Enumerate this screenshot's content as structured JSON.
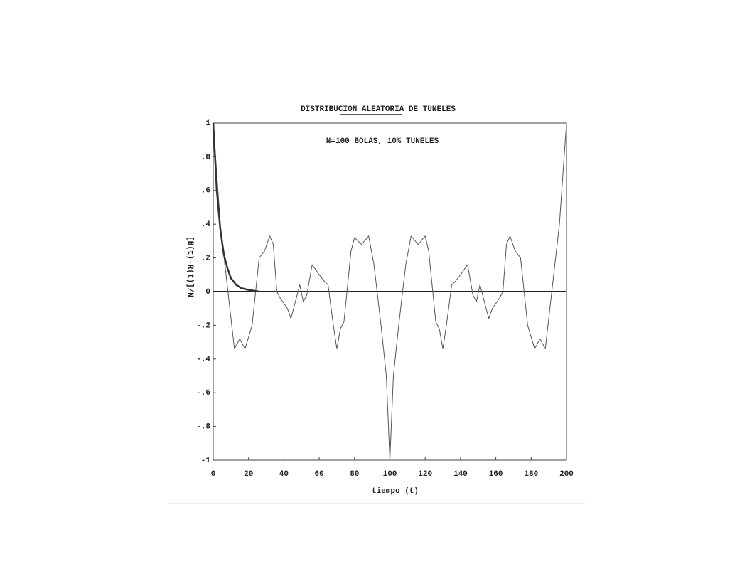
{
  "chart_data": {
    "type": "line",
    "title": "DISTRIBUCION ALEATORIA DE TUNELES",
    "annotation": "N=100 BOLAS, 10% TUNELES",
    "x_label": "tiempo (t)",
    "y_label": "[B(t)-R(t)]/N",
    "xlim": [
      0,
      200
    ],
    "ylim": [
      -1,
      1
    ],
    "xticks": [
      0,
      20,
      40,
      60,
      80,
      100,
      120,
      140,
      160,
      180,
      200
    ],
    "yticks": [
      1,
      {
        "value": 0.8,
        "label": ".8"
      },
      {
        "value": 0.6,
        "label": ".6"
      },
      {
        "value": 0.4,
        "label": ".4"
      },
      {
        "value": 0.2,
        "label": ".2"
      },
      0,
      {
        "value": -0.2,
        "label": "-.2"
      },
      {
        "value": -0.4,
        "label": "-.4"
      },
      {
        "value": -0.6,
        "label": "-.6"
      },
      {
        "value": -0.8,
        "label": "-.8"
      },
      -1
    ],
    "grid": false,
    "series": [
      {
        "color": "#555555",
        "width": 1,
        "x": [
          0,
          4,
          12,
          15,
          18,
          22,
          26,
          29,
          32,
          34,
          36,
          38,
          42,
          44,
          47,
          49,
          51,
          53,
          56,
          60,
          63,
          65,
          68,
          70,
          72,
          74,
          78,
          80,
          84,
          88,
          91,
          95,
          98,
          100,
          102,
          105,
          109,
          112,
          116,
          120,
          122,
          126,
          128,
          130,
          132,
          135,
          137,
          140,
          144,
          147,
          149,
          151,
          153,
          156,
          158,
          162,
          164,
          166,
          168,
          171,
          174,
          178,
          182,
          185,
          188,
          196,
          200
        ],
        "values": [
          1,
          0.4,
          -0.34,
          -0.28,
          -0.34,
          -0.2,
          0.2,
          0.24,
          0.33,
          0.28,
          0,
          -0.04,
          -0.1,
          -0.16,
          -0.04,
          0.04,
          -0.06,
          -0.02,
          0.16,
          0.1,
          0.06,
          0.04,
          -0.2,
          -0.34,
          -0.22,
          -0.18,
          0.24,
          0.32,
          0.28,
          0.33,
          0.16,
          -0.2,
          -0.5,
          -1,
          -0.5,
          -0.2,
          0.16,
          0.33,
          0.28,
          0.33,
          0.24,
          -0.18,
          -0.22,
          -0.34,
          -0.2,
          0.04,
          0.06,
          0.1,
          0.16,
          -0.02,
          -0.06,
          0.04,
          -0.04,
          -0.16,
          -0.1,
          -0.04,
          0,
          0.28,
          0.33,
          0.24,
          0.2,
          -0.2,
          -0.34,
          -0.28,
          -0.34,
          0.4,
          1
        ]
      },
      {
        "color": "#333333",
        "width": 2.5,
        "x": [
          0,
          2,
          4,
          6,
          8,
          10,
          13,
          16,
          20,
          26
        ],
        "values": [
          1,
          0.6,
          0.37,
          0.22,
          0.14,
          0.08,
          0.04,
          0.02,
          0.01,
          0
        ]
      }
    ]
  }
}
